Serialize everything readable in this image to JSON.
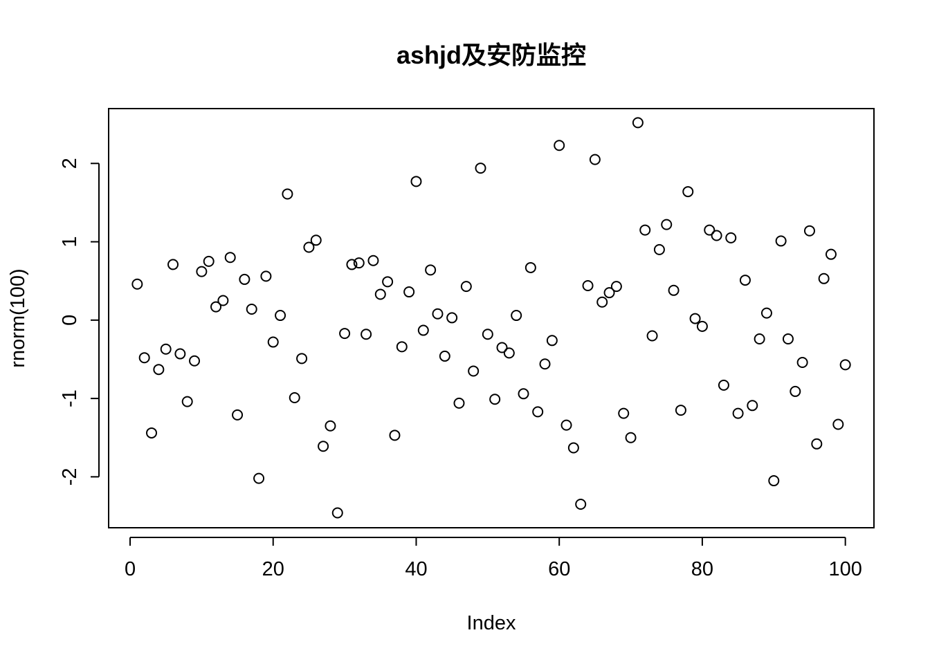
{
  "chart_data": {
    "type": "scatter",
    "title": "ashjd及安防监控",
    "xlabel": "Index",
    "ylabel": "rnorm(100)",
    "xlim": [
      -3,
      104
    ],
    "ylim": [
      -2.65,
      2.7
    ],
    "xticks": [
      0,
      20,
      40,
      60,
      80,
      100
    ],
    "xtick_labels": [
      "0",
      "20",
      "40",
      "60",
      "80",
      "100"
    ],
    "yticks": [
      -2,
      -1,
      0,
      1,
      2
    ],
    "ytick_labels": [
      "-2",
      "-1",
      "0",
      "1",
      "2"
    ],
    "grid": false,
    "marker": "open-circle",
    "x": [
      1,
      2,
      3,
      4,
      5,
      6,
      7,
      8,
      9,
      10,
      11,
      12,
      13,
      14,
      15,
      16,
      17,
      18,
      19,
      20,
      21,
      22,
      23,
      24,
      25,
      26,
      27,
      28,
      29,
      30,
      31,
      32,
      33,
      34,
      35,
      36,
      37,
      38,
      39,
      40,
      41,
      42,
      43,
      44,
      45,
      46,
      47,
      48,
      49,
      50,
      51,
      52,
      53,
      54,
      55,
      56,
      57,
      58,
      59,
      60,
      61,
      62,
      63,
      64,
      65,
      66,
      67,
      68,
      69,
      70,
      71,
      72,
      73,
      74,
      75,
      76,
      77,
      78,
      79,
      80,
      81,
      82,
      83,
      84,
      85,
      86,
      87,
      88,
      89,
      90,
      91,
      92,
      93,
      94,
      95,
      96,
      97,
      98,
      99,
      100
    ],
    "y": [
      0.46,
      -0.48,
      -1.44,
      -0.63,
      -0.37,
      0.71,
      -0.43,
      -1.04,
      -0.52,
      0.62,
      0.75,
      0.17,
      0.25,
      0.8,
      -1.21,
      0.52,
      0.14,
      -2.02,
      0.56,
      -0.28,
      0.06,
      1.61,
      -0.99,
      -0.49,
      0.93,
      1.02,
      -1.61,
      -1.35,
      -2.46,
      -0.17,
      0.71,
      0.73,
      -0.18,
      0.76,
      0.33,
      0.49,
      -1.47,
      -0.34,
      0.36,
      1.77,
      -0.13,
      0.64,
      0.08,
      -0.46,
      0.03,
      -1.06,
      0.43,
      -0.65,
      1.94,
      -0.18,
      -1.01,
      -0.35,
      -0.42,
      0.06,
      -0.94,
      0.67,
      -1.17,
      -0.56,
      -0.26,
      2.23,
      -1.34,
      -1.63,
      -2.35,
      0.44,
      2.05,
      0.23,
      0.35,
      0.43,
      -1.19,
      -1.5,
      2.52,
      1.15,
      -0.2,
      0.9,
      1.22,
      0.38,
      -1.15,
      1.64,
      0.02,
      -0.08,
      1.15,
      1.08,
      -0.83,
      1.05,
      -1.19,
      0.51,
      -1.09,
      -0.24,
      0.09,
      -2.05,
      1.01,
      -0.24,
      -0.91,
      -0.54,
      1.14,
      -1.58,
      0.53,
      0.84,
      -1.33,
      -0.57
    ]
  }
}
